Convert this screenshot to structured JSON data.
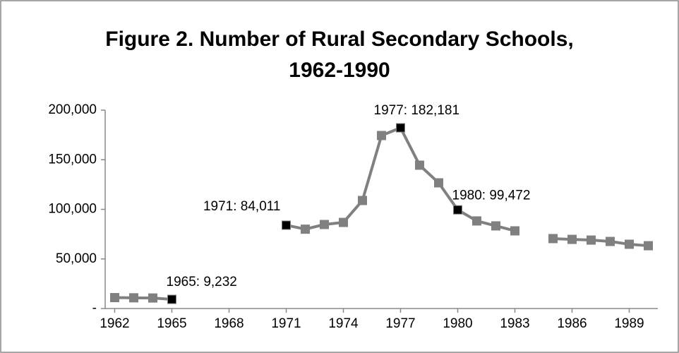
{
  "chart_data": {
    "type": "line",
    "title": [
      "Figure 2. Number of Rural Secondary Schools,",
      "1962-1990"
    ],
    "x": [
      1962,
      1963,
      1964,
      1965,
      1966,
      1967,
      1968,
      1969,
      1970,
      1971,
      1972,
      1973,
      1974,
      1975,
      1976,
      1977,
      1978,
      1979,
      1980,
      1981,
      1982,
      1983,
      1984,
      1985,
      1986,
      1987,
      1988,
      1989,
      1990
    ],
    "series": [
      {
        "color": "#808080",
        "highlight_color": "#000000",
        "values": [
          11000,
          10800,
          10600,
          9232,
          null,
          null,
          null,
          null,
          null,
          84011,
          80000,
          84700,
          86800,
          108900,
          174400,
          182181,
          144500,
          126700,
          99472,
          88300,
          83300,
          78300,
          null,
          70500,
          69700,
          69000,
          67600,
          64800,
          63300
        ],
        "value_labels": [
          null,
          null,
          null,
          "1965: 9,232",
          null,
          null,
          null,
          null,
          null,
          "1971: 84,011",
          null,
          null,
          null,
          null,
          null,
          "1977: 182,181",
          null,
          null,
          "1980: 99,472",
          null,
          null,
          null,
          null,
          null,
          null,
          null,
          null,
          null,
          null
        ]
      }
    ],
    "xlim": [
      1961.5,
      1990.5
    ],
    "xticks": [
      1962,
      1965,
      1968,
      1971,
      1974,
      1977,
      1980,
      1983,
      1986,
      1989
    ],
    "ylim": [
      0,
      200000
    ],
    "yticks": [
      {
        "value": 0,
        "label": "-"
      },
      {
        "value": 50000,
        "label": "50,000"
      },
      {
        "value": 100000,
        "label": "100,000"
      },
      {
        "value": 150000,
        "label": "150,000"
      },
      {
        "value": 200000,
        "label": "200,000"
      }
    ]
  }
}
